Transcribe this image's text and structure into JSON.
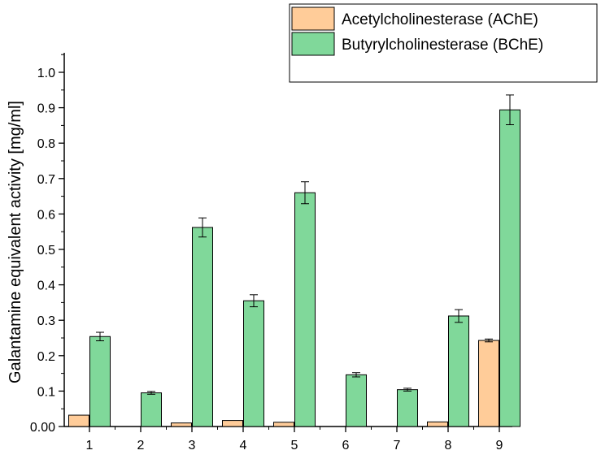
{
  "chart_data": {
    "type": "bar",
    "title": "",
    "xlabel": "",
    "ylabel": "Galantamine equivalent activity [mg/ml]",
    "ylim": [
      0,
      1.05
    ],
    "yticks": [
      0.0,
      0.1,
      0.2,
      0.3,
      0.4,
      0.5,
      0.6,
      0.7,
      0.8,
      0.9,
      1.0
    ],
    "ytick_labels": [
      "0.00",
      "0.1",
      "0.2",
      "0.3",
      "0.4",
      "0.5",
      "0.6",
      "0.7",
      "0.8",
      "0.9",
      "1.0"
    ],
    "categories": [
      "1",
      "2",
      "3",
      "4",
      "5",
      "6",
      "7",
      "8",
      "9"
    ],
    "legend_position": "top-right",
    "series": [
      {
        "name": "Acetylcholinesterase (AChE)",
        "color": "#FFCC99",
        "values": [
          0.032,
          0,
          0.01,
          0.017,
          0.012,
          0,
          0,
          0.013,
          0.243
        ],
        "errors": [
          0,
          0,
          0,
          0,
          0,
          0,
          0,
          0,
          0.004
        ]
      },
      {
        "name": "Butyrylcholinesterase (BChE)",
        "color": "#80D89A",
        "values": [
          0.254,
          0.095,
          0.562,
          0.355,
          0.66,
          0.146,
          0.104,
          0.312,
          0.894
        ],
        "errors": [
          0.012,
          0.004,
          0.027,
          0.017,
          0.031,
          0.006,
          0.004,
          0.018,
          0.042
        ]
      }
    ]
  }
}
